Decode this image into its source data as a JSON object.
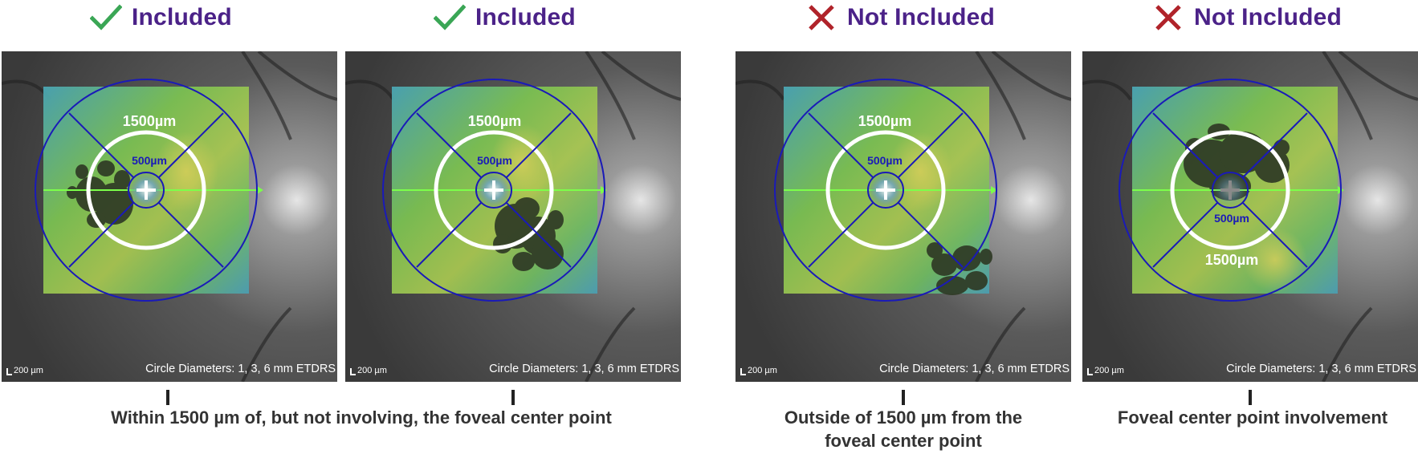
{
  "colors": {
    "included_check": "#3aa655",
    "excluded_cross": "#b0232a",
    "status_text": "#4b2288",
    "ring_white": "#ffffff",
    "grid_blue": "#1a1ab8",
    "scan_line": "#7cff4a",
    "lesion": "#3a4a2a"
  },
  "panels": [
    {
      "status_icon": "check-icon",
      "status_label": "Included",
      "outer_ring_label": "1500µm",
      "inner_ring_label": "500µm",
      "scale_label": "200 µm",
      "etdrs_label": "Circle Diameters: 1, 3, 6 mm ETDRS"
    },
    {
      "status_icon": "check-icon",
      "status_label": "Included",
      "outer_ring_label": "1500µm",
      "inner_ring_label": "500µm",
      "scale_label": "200 µm",
      "etdrs_label": "Circle Diameters: 1, 3, 6 mm ETDRS"
    },
    {
      "status_icon": "cross-icon",
      "status_label": "Not Included",
      "outer_ring_label": "1500µm",
      "inner_ring_label": "500µm",
      "scale_label": "200 µm",
      "etdrs_label": "Circle Diameters: 1, 3, 6 mm ETDRS"
    },
    {
      "status_icon": "cross-icon",
      "status_label": "Not Included",
      "outer_ring_label": "1500µm",
      "inner_ring_label": "500µm",
      "scale_label": "200 µm",
      "etdrs_label": "Circle Diameters: 1, 3, 6 mm ETDRS"
    }
  ],
  "descriptions": [
    {
      "line1": "Within 1500 µm of, but not involving, the foveal center point",
      "line2": ""
    },
    {
      "line1": "Outside of 1500 µm from the",
      "line2": "foveal center point"
    },
    {
      "line1": "Foveal center point involvement",
      "line2": ""
    }
  ]
}
